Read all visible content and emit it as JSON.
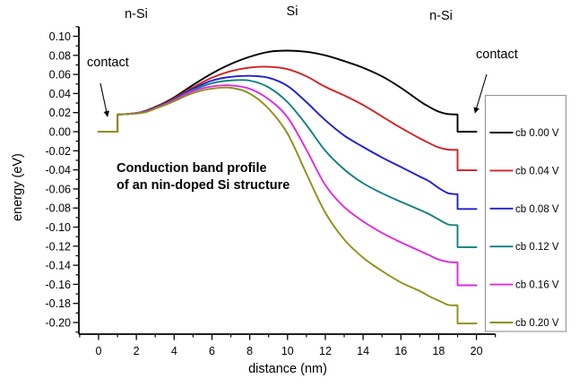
{
  "figure": {
    "region_labels": {
      "left": "n-Si",
      "center": "Si",
      "right": "n-Si"
    },
    "contact_left": "contact",
    "contact_right": "contact",
    "annotation_line1": "Conduction band profile",
    "annotation_line2": "of an nin-doped Si structure"
  },
  "chart_data": {
    "type": "line",
    "title": "",
    "xlabel": "distance (nm)",
    "ylabel": "energy (eV)",
    "xlim": [
      -1,
      21
    ],
    "ylim": [
      -0.21,
      0.11
    ],
    "grid": false,
    "legend_position": "right",
    "x_major_ticks": [
      0,
      2,
      4,
      6,
      8,
      10,
      12,
      14,
      16,
      18,
      20
    ],
    "x_minor_ticks": [
      -1,
      1,
      3,
      5,
      7,
      9,
      11,
      13,
      15,
      17,
      19,
      21
    ],
    "y_major_ticks": [
      0.1,
      0.08,
      0.06,
      0.04,
      0.02,
      0.0,
      -0.02,
      -0.04,
      -0.06,
      -0.08,
      -0.1,
      -0.12,
      -0.14,
      -0.16,
      -0.18,
      -0.2
    ],
    "y_minor_ticks": [
      0.11,
      0.09,
      0.07,
      0.05,
      0.03,
      0.01,
      -0.01,
      -0.03,
      -0.05,
      -0.07,
      -0.09,
      -0.11,
      -0.13,
      -0.15,
      -0.17,
      -0.19,
      -0.21
    ],
    "series": [
      {
        "name": "cb 0.00 V",
        "color": "#000000",
        "points": [
          [
            0,
            0
          ],
          [
            1,
            0
          ],
          [
            1,
            0.018
          ],
          [
            1.5,
            0.0185
          ],
          [
            2,
            0.0195
          ],
          [
            2.5,
            0.022
          ],
          [
            3,
            0.026
          ],
          [
            3.5,
            0.0305
          ],
          [
            4,
            0.036
          ],
          [
            5,
            0.049
          ],
          [
            6,
            0.061
          ],
          [
            7,
            0.071
          ],
          [
            8,
            0.0785
          ],
          [
            9,
            0.0837
          ],
          [
            10,
            0.085
          ],
          [
            11,
            0.0838
          ],
          [
            12,
            0.08
          ],
          [
            13,
            0.074
          ],
          [
            14,
            0.067
          ],
          [
            15,
            0.058
          ],
          [
            16,
            0.046
          ],
          [
            17,
            0.032
          ],
          [
            17.5,
            0.026
          ],
          [
            18,
            0.021
          ],
          [
            18.5,
            0.0185
          ],
          [
            19,
            0.018
          ],
          [
            19,
            0.0
          ],
          [
            20,
            0.0
          ]
        ]
      },
      {
        "name": "cb 0.04 V",
        "color": "#d42020",
        "points": [
          [
            0,
            0
          ],
          [
            1,
            0
          ],
          [
            1,
            0.018
          ],
          [
            1.5,
            0.0185
          ],
          [
            2,
            0.0195
          ],
          [
            2.5,
            0.0215
          ],
          [
            3,
            0.0255
          ],
          [
            3.5,
            0.03
          ],
          [
            4,
            0.035
          ],
          [
            5,
            0.0465
          ],
          [
            6,
            0.0565
          ],
          [
            7,
            0.0635
          ],
          [
            8,
            0.0672
          ],
          [
            9,
            0.068
          ],
          [
            10,
            0.0655
          ],
          [
            11,
            0.058
          ],
          [
            12,
            0.047
          ],
          [
            13,
            0.038
          ],
          [
            14,
            0.028
          ],
          [
            15,
            0.016
          ],
          [
            16,
            0.004
          ],
          [
            17,
            -0.007
          ],
          [
            17.5,
            -0.012
          ],
          [
            18,
            -0.0165
          ],
          [
            18.5,
            -0.0188
          ],
          [
            19,
            -0.019
          ],
          [
            19,
            -0.0405
          ],
          [
            20,
            -0.0405
          ]
        ]
      },
      {
        "name": "cb 0.08 V",
        "color": "#1f1fd0",
        "points": [
          [
            0,
            0
          ],
          [
            1,
            0
          ],
          [
            1,
            0.018
          ],
          [
            1.5,
            0.0185
          ],
          [
            2,
            0.0195
          ],
          [
            2.5,
            0.0213
          ],
          [
            3,
            0.025
          ],
          [
            3.5,
            0.0295
          ],
          [
            4,
            0.034
          ],
          [
            5,
            0.045
          ],
          [
            6,
            0.0535
          ],
          [
            7,
            0.0575
          ],
          [
            8,
            0.0585
          ],
          [
            9,
            0.0565
          ],
          [
            10,
            0.048
          ],
          [
            11,
            0.031
          ],
          [
            12,
            0.012
          ],
          [
            13,
            -0.004
          ],
          [
            14,
            -0.016
          ],
          [
            15,
            -0.027
          ],
          [
            16,
            -0.037
          ],
          [
            17,
            -0.047
          ],
          [
            17.5,
            -0.052
          ],
          [
            18,
            -0.059
          ],
          [
            18.5,
            -0.0645
          ],
          [
            19,
            -0.0655
          ],
          [
            19,
            -0.081
          ],
          [
            20,
            -0.081
          ]
        ]
      },
      {
        "name": "cb 0.12 V",
        "color": "#0f8080",
        "points": [
          [
            0,
            0
          ],
          [
            1,
            0
          ],
          [
            1,
            0.018
          ],
          [
            1.5,
            0.0185
          ],
          [
            2,
            0.0195
          ],
          [
            2.5,
            0.021
          ],
          [
            3,
            0.0248
          ],
          [
            3.5,
            0.029
          ],
          [
            4,
            0.0335
          ],
          [
            5,
            0.0438
          ],
          [
            6,
            0.0508
          ],
          [
            7,
            0.0537
          ],
          [
            8,
            0.0535
          ],
          [
            9,
            0.0465
          ],
          [
            10,
            0.031
          ],
          [
            11,
            0.007
          ],
          [
            12,
            -0.02
          ],
          [
            13,
            -0.0395
          ],
          [
            14,
            -0.054
          ],
          [
            15,
            -0.0645
          ],
          [
            16,
            -0.0735
          ],
          [
            17,
            -0.082
          ],
          [
            17.5,
            -0.0865
          ],
          [
            18,
            -0.092
          ],
          [
            18.5,
            -0.0972
          ],
          [
            19,
            -0.098
          ],
          [
            19,
            -0.121
          ],
          [
            20,
            -0.121
          ]
        ]
      },
      {
        "name": "cb 0.16 V",
        "color": "#e028e0",
        "points": [
          [
            0,
            0
          ],
          [
            1,
            0
          ],
          [
            1,
            0.018
          ],
          [
            1.5,
            0.0185
          ],
          [
            2,
            0.0195
          ],
          [
            2.5,
            0.021
          ],
          [
            3,
            0.0245
          ],
          [
            3.5,
            0.0285
          ],
          [
            4,
            0.033
          ],
          [
            5,
            0.0425
          ],
          [
            6,
            0.0475
          ],
          [
            7,
            0.0485
          ],
          [
            8,
            0.045
          ],
          [
            9,
            0.034
          ],
          [
            10,
            0.015
          ],
          [
            11,
            -0.019
          ],
          [
            12,
            -0.056
          ],
          [
            13,
            -0.079
          ],
          [
            14,
            -0.094
          ],
          [
            15,
            -0.106
          ],
          [
            16,
            -0.116
          ],
          [
            17,
            -0.125
          ],
          [
            17.5,
            -0.1295
          ],
          [
            18,
            -0.134
          ],
          [
            18.5,
            -0.1365
          ],
          [
            19,
            -0.137
          ],
          [
            19,
            -0.161
          ],
          [
            20,
            -0.161
          ]
        ]
      },
      {
        "name": "cb 0.20 V",
        "color": "#8f8f1a",
        "points": [
          [
            0,
            0
          ],
          [
            1,
            0
          ],
          [
            1,
            0.018
          ],
          [
            1.5,
            0.0185
          ],
          [
            2,
            0.019
          ],
          [
            2.5,
            0.0205
          ],
          [
            3,
            0.024
          ],
          [
            3.5,
            0.0278
          ],
          [
            4,
            0.032
          ],
          [
            5,
            0.0405
          ],
          [
            6,
            0.0452
          ],
          [
            7,
            0.046
          ],
          [
            8,
            0.04
          ],
          [
            9,
            0.024
          ],
          [
            10,
            -0.002
          ],
          [
            11,
            -0.044
          ],
          [
            12,
            -0.085
          ],
          [
            13,
            -0.113
          ],
          [
            14,
            -0.132
          ],
          [
            15,
            -0.146
          ],
          [
            16,
            -0.158
          ],
          [
            17,
            -0.167
          ],
          [
            17.5,
            -0.1725
          ],
          [
            18,
            -0.177
          ],
          [
            18.5,
            -0.1815
          ],
          [
            19,
            -0.182
          ],
          [
            19,
            -0.201
          ],
          [
            20,
            -0.201
          ]
        ]
      }
    ]
  },
  "legend": {
    "entries": [
      {
        "label": "cb 0.00 V",
        "color": "#000000"
      },
      {
        "label": "cb 0.04 V",
        "color": "#d42020"
      },
      {
        "label": "cb 0.08 V",
        "color": "#1f1fd0"
      },
      {
        "label": "cb 0.12 V",
        "color": "#0f8080"
      },
      {
        "label": "cb 0.16 V",
        "color": "#e028e0"
      },
      {
        "label": "cb 0.20 V",
        "color": "#8f8f1a"
      }
    ],
    "border_color": "#9a9a9a"
  }
}
